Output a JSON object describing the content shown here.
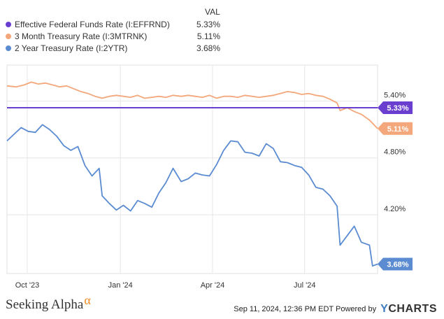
{
  "legend": {
    "header": "VAL",
    "items": [
      {
        "label": "Effective Federal Funds Rate (I:EFFRND)",
        "value": "5.33%",
        "color": "#6a3fcf"
      },
      {
        "label": "3 Month Treasury Rate (I:3MTRNK)",
        "value": "5.11%",
        "color": "#f4a77a"
      },
      {
        "label": "2 Year Treasury Rate (I:2YTR)",
        "value": "3.68%",
        "color": "#5b8bd0"
      }
    ]
  },
  "footer": {
    "brand": "Seeking Alpha",
    "brand_mark": "α",
    "timestamp": "Sep 11, 2024, 12:36 PM EDT Powered by",
    "logo_y": "Y",
    "logo_rest": "CHARTS"
  },
  "chart_data": {
    "type": "line",
    "x_tick_labels": [
      "Oct '23",
      "Jan '24",
      "Apr '24",
      "Jul '24"
    ],
    "y_tick_labels": [
      "5.40%",
      "4.80%",
      "4.20%"
    ],
    "y_ticks": [
      5.4,
      4.8,
      4.2
    ],
    "ylim": [
      3.58,
      5.78
    ],
    "xlim": [
      "2023-09-11",
      "2024-09-11"
    ],
    "grid": true,
    "legend_position": "top-left",
    "series": [
      {
        "name": "Effective Federal Funds Rate (I:EFFRND)",
        "color": "#6a3fcf",
        "end_label": "5.33%",
        "x": [
          "2023-09-11",
          "2024-09-11"
        ],
        "y": [
          5.33,
          5.33
        ]
      },
      {
        "name": "3 Month Treasury Rate (I:3MTRNK)",
        "color": "#f4a77a",
        "end_label": "5.11%",
        "x": [
          "2023-09-11",
          "2023-09-20",
          "2023-09-28",
          "2023-10-05",
          "2023-10-12",
          "2023-10-19",
          "2023-10-26",
          "2023-11-02",
          "2023-11-09",
          "2023-11-16",
          "2023-11-23",
          "2023-11-30",
          "2023-12-07",
          "2023-12-14",
          "2023-12-21",
          "2023-12-28",
          "2024-01-04",
          "2024-01-11",
          "2024-01-18",
          "2024-01-25",
          "2024-02-01",
          "2024-02-08",
          "2024-02-15",
          "2024-02-22",
          "2024-03-01",
          "2024-03-08",
          "2024-03-15",
          "2024-03-22",
          "2024-03-29",
          "2024-04-05",
          "2024-04-12",
          "2024-04-19",
          "2024-04-26",
          "2024-05-03",
          "2024-05-10",
          "2024-05-17",
          "2024-05-24",
          "2024-05-31",
          "2024-06-07",
          "2024-06-14",
          "2024-06-21",
          "2024-06-28",
          "2024-07-05",
          "2024-07-12",
          "2024-07-19",
          "2024-07-26",
          "2024-08-02",
          "2024-08-05",
          "2024-08-12",
          "2024-08-19",
          "2024-08-26",
          "2024-09-03",
          "2024-09-11"
        ],
        "y": [
          5.56,
          5.55,
          5.57,
          5.6,
          5.58,
          5.59,
          5.57,
          5.55,
          5.56,
          5.53,
          5.5,
          5.48,
          5.45,
          5.43,
          5.45,
          5.46,
          5.45,
          5.44,
          5.46,
          5.43,
          5.44,
          5.45,
          5.44,
          5.46,
          5.45,
          5.46,
          5.45,
          5.44,
          5.46,
          5.43,
          5.45,
          5.45,
          5.44,
          5.46,
          5.45,
          5.44,
          5.45,
          5.46,
          5.48,
          5.5,
          5.49,
          5.47,
          5.48,
          5.46,
          5.45,
          5.42,
          5.38,
          5.3,
          5.33,
          5.29,
          5.26,
          5.2,
          5.11
        ]
      },
      {
        "name": "2 Year Treasury Rate (I:2YTR)",
        "color": "#5b8bd0",
        "end_label": "3.68%",
        "x": [
          "2023-09-11",
          "2023-09-18",
          "2023-09-25",
          "2023-10-02",
          "2023-10-09",
          "2023-10-16",
          "2023-10-23",
          "2023-10-30",
          "2023-11-06",
          "2023-11-13",
          "2023-11-20",
          "2023-11-27",
          "2023-12-04",
          "2023-12-11",
          "2023-12-14",
          "2023-12-21",
          "2023-12-28",
          "2024-01-04",
          "2024-01-11",
          "2024-01-18",
          "2024-01-25",
          "2024-02-01",
          "2024-02-08",
          "2024-02-15",
          "2024-02-22",
          "2024-03-01",
          "2024-03-08",
          "2024-03-15",
          "2024-03-22",
          "2024-03-29",
          "2024-04-05",
          "2024-04-12",
          "2024-04-19",
          "2024-04-26",
          "2024-05-03",
          "2024-05-10",
          "2024-05-17",
          "2024-05-24",
          "2024-05-31",
          "2024-06-07",
          "2024-06-14",
          "2024-06-21",
          "2024-06-28",
          "2024-07-05",
          "2024-07-12",
          "2024-07-19",
          "2024-07-26",
          "2024-08-02",
          "2024-08-05",
          "2024-08-12",
          "2024-08-19",
          "2024-08-26",
          "2024-09-03",
          "2024-09-06",
          "2024-09-11"
        ],
        "y": [
          4.98,
          5.05,
          5.12,
          5.08,
          5.07,
          5.15,
          5.1,
          5.03,
          4.93,
          4.88,
          4.92,
          4.72,
          4.61,
          4.69,
          4.4,
          4.32,
          4.25,
          4.3,
          4.24,
          4.35,
          4.32,
          4.28,
          4.43,
          4.54,
          4.69,
          4.55,
          4.58,
          4.64,
          4.62,
          4.61,
          4.73,
          4.88,
          4.98,
          4.97,
          4.86,
          4.85,
          4.82,
          4.95,
          4.9,
          4.76,
          4.75,
          4.72,
          4.7,
          4.62,
          4.49,
          4.47,
          4.4,
          4.29,
          3.88,
          3.98,
          4.08,
          3.91,
          3.88,
          3.66,
          3.68
        ]
      }
    ]
  }
}
